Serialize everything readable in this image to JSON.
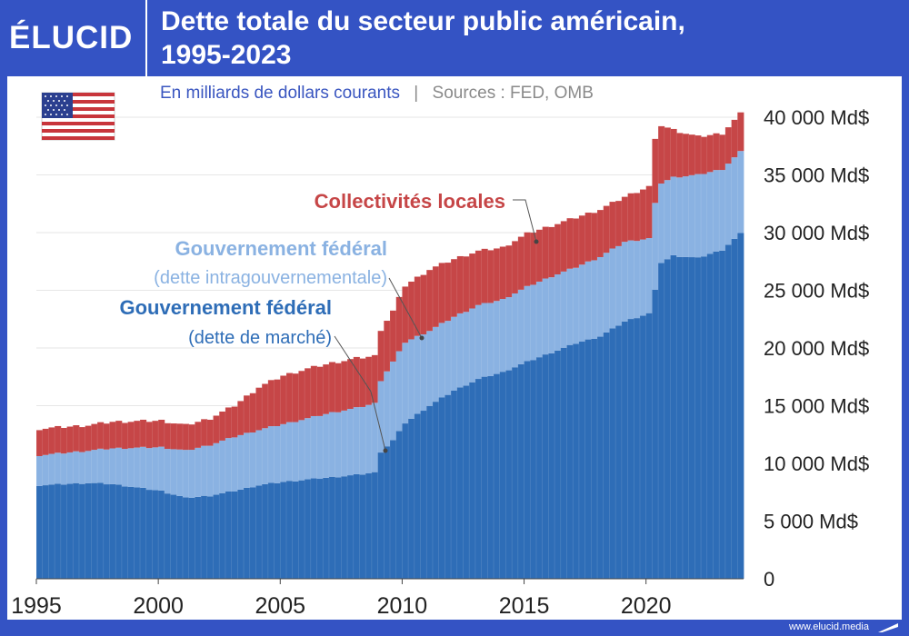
{
  "brand": {
    "logo": "ÉLUCID",
    "footer": "www.elucid.media"
  },
  "header": {
    "title_line1": "Dette totale du secteur public américain,",
    "title_line2": "1995-2023"
  },
  "subtitle": {
    "units": "En milliards de dollars courants",
    "separator": "|",
    "sources": "Sources : FED, OMB"
  },
  "flag": {
    "icon": "us-flag-icon"
  },
  "colors": {
    "market": "#2e6db7",
    "intragov": "#8ab2e2",
    "local": "#c64647",
    "grid": "#e6e6e6",
    "frame": "#3453c4"
  },
  "chart_data": {
    "type": "bar",
    "stacked": true,
    "x_start": 1995,
    "quarters_per_year": 4,
    "ylim": [
      0,
      40000
    ],
    "xlim": [
      1995,
      2024
    ],
    "y_ticks": [
      0,
      5000,
      10000,
      15000,
      20000,
      25000,
      30000,
      35000,
      40000
    ],
    "y_tick_labels": [
      "0",
      "5 000 Md$",
      "10 000 Md$",
      "15 000 Md$",
      "20 000 Md$",
      "25 000 Md$",
      "30 000 Md$",
      "35 000 Md$",
      "40 000 Md$"
    ],
    "x_ticks": [
      1995,
      2000,
      2005,
      2010,
      2015,
      2020
    ],
    "x_tick_labels": [
      "1995",
      "2000",
      "2005",
      "2010",
      "2015",
      "2020"
    ],
    "annotations": {
      "local": "Collectivités locales",
      "intragov_title": "Gouvernement fédéral",
      "intragov_sub": "(dette intragouvernementale)",
      "market_title": "Gouvernement fédéral",
      "market_sub": "(dette de marché)"
    },
    "anchors": {
      "years": [
        1995,
        1997,
        1998,
        2000,
        2001,
        2002,
        2003,
        2004,
        2005,
        2006,
        2007,
        2008,
        2008.75,
        2009,
        2009.5,
        2010,
        2011,
        2012,
        2013,
        2014,
        2015,
        2016,
        2017,
        2018,
        2019,
        2020,
        2020.25,
        2020.5,
        2021,
        2022,
        2023,
        2023.75
      ],
      "market": [
        8100,
        8300,
        8200,
        7600,
        7000,
        7200,
        7600,
        8100,
        8400,
        8600,
        8800,
        9000,
        9200,
        11000,
        12000,
        13500,
        15000,
        16300,
        17300,
        17900,
        18800,
        19600,
        20400,
        21000,
        22300,
        23000,
        25000,
        27400,
        28000,
        27800,
        28500,
        29900
      ],
      "intragov_top": [
        10700,
        11100,
        11300,
        11400,
        11100,
        11600,
        12300,
        12900,
        13400,
        13900,
        14400,
        14800,
        15200,
        17200,
        18800,
        20500,
        21500,
        22700,
        23700,
        24200,
        25300,
        26200,
        27000,
        27900,
        29200,
        29500,
        32500,
        34300,
        34800,
        35000,
        35500,
        37000
      ],
      "total": [
        13000,
        13300,
        13600,
        13700,
        13300,
        13900,
        15000,
        16600,
        17600,
        18200,
        18700,
        19100,
        19300,
        21600,
        23200,
        25400,
        26800,
        27700,
        28400,
        28700,
        29900,
        30600,
        31300,
        32000,
        33100,
        34000,
        38000,
        39300,
        38900,
        38300,
        38600,
        40300
      ]
    }
  }
}
